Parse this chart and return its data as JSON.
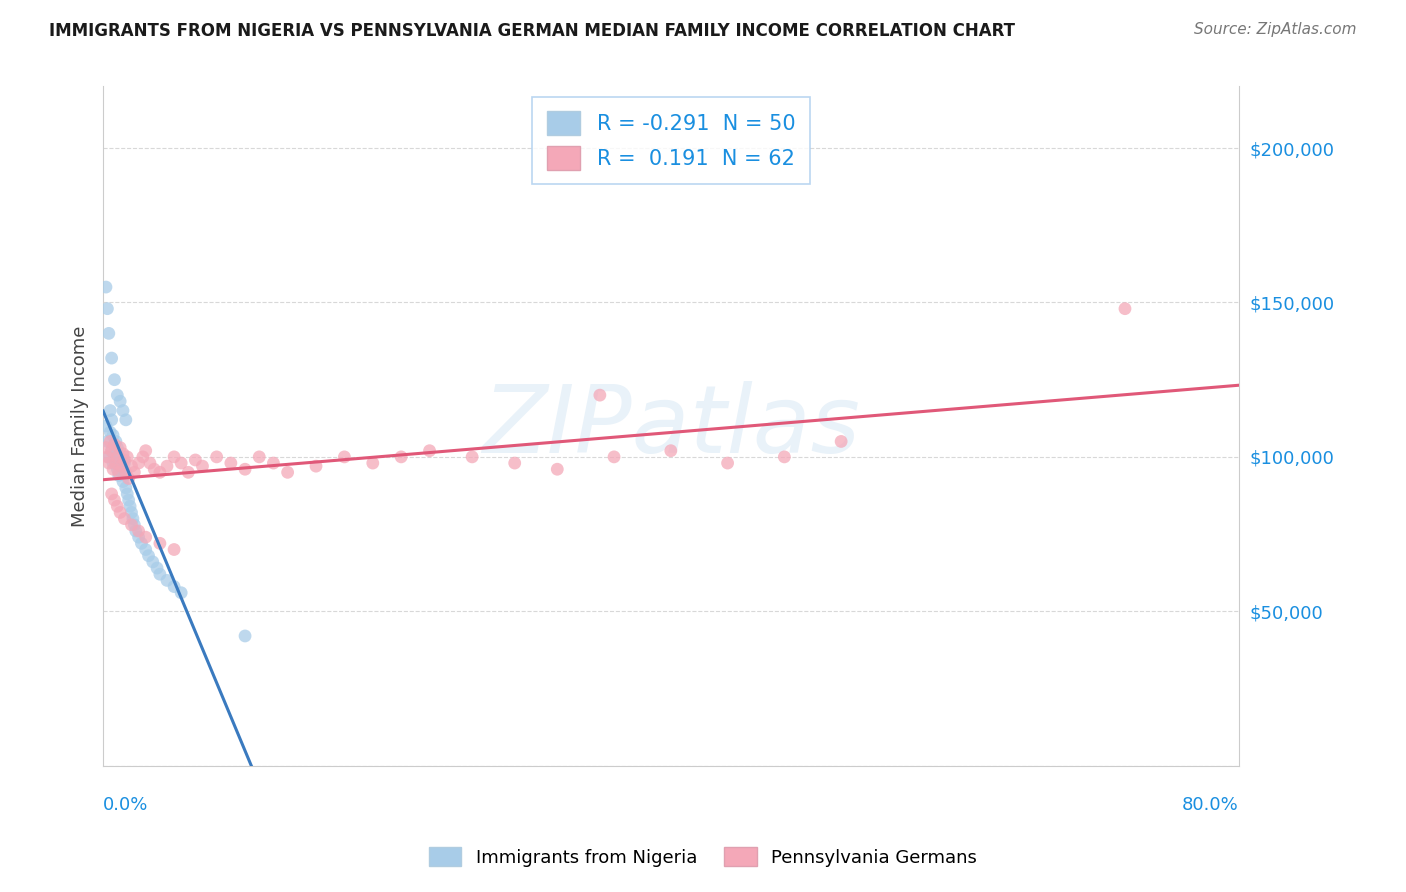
{
  "title": "IMMIGRANTS FROM NIGERIA VS PENNSYLVANIA GERMAN MEDIAN FAMILY INCOME CORRELATION CHART",
  "source": "Source: ZipAtlas.com",
  "ylabel": "Median Family Income",
  "xmin": 0.0,
  "xmax": 0.8,
  "ymin": 0,
  "ymax": 220000,
  "yticks": [
    0,
    50000,
    100000,
    150000,
    200000
  ],
  "ytick_labels": [
    "",
    "$50,000",
    "$100,000",
    "$150,000",
    "$200,000"
  ],
  "series1_label": "Immigrants from Nigeria",
  "series1_R": -0.291,
  "series1_N": 50,
  "series1_color": "#a8cce8",
  "series1_line_color": "#3a7abf",
  "series2_label": "Pennsylvania Germans",
  "series2_R": 0.191,
  "series2_N": 62,
  "series2_color": "#f4a8b8",
  "series2_line_color": "#e05878",
  "watermark": "ZIPatlas",
  "tick_color": "#1a8fe0",
  "grid_color": "#d8d8d8",
  "nigeria_x": [
    0.002,
    0.003,
    0.004,
    0.005,
    0.005,
    0.006,
    0.006,
    0.007,
    0.007,
    0.008,
    0.008,
    0.009,
    0.009,
    0.01,
    0.01,
    0.011,
    0.011,
    0.012,
    0.013,
    0.014,
    0.015,
    0.015,
    0.016,
    0.017,
    0.018,
    0.019,
    0.02,
    0.021,
    0.022,
    0.023,
    0.025,
    0.027,
    0.03,
    0.032,
    0.035,
    0.038,
    0.04,
    0.045,
    0.05,
    0.055,
    0.002,
    0.003,
    0.004,
    0.006,
    0.008,
    0.01,
    0.012,
    0.014,
    0.016,
    0.1
  ],
  "nigeria_y": [
    110000,
    105000,
    100000,
    115000,
    108000,
    102000,
    112000,
    98000,
    107000,
    104000,
    100000,
    98000,
    105000,
    103000,
    96000,
    100000,
    94000,
    97000,
    95000,
    92000,
    98000,
    94000,
    90000,
    88000,
    86000,
    84000,
    82000,
    80000,
    78000,
    76000,
    74000,
    72000,
    70000,
    68000,
    66000,
    64000,
    62000,
    60000,
    58000,
    56000,
    155000,
    148000,
    140000,
    132000,
    125000,
    120000,
    118000,
    115000,
    112000,
    42000
  ],
  "pa_x": [
    0.002,
    0.003,
    0.004,
    0.005,
    0.006,
    0.007,
    0.008,
    0.009,
    0.01,
    0.011,
    0.012,
    0.013,
    0.014,
    0.015,
    0.016,
    0.017,
    0.018,
    0.02,
    0.022,
    0.025,
    0.028,
    0.03,
    0.033,
    0.036,
    0.04,
    0.045,
    0.05,
    0.055,
    0.06,
    0.065,
    0.07,
    0.08,
    0.09,
    0.1,
    0.11,
    0.12,
    0.13,
    0.15,
    0.17,
    0.19,
    0.21,
    0.23,
    0.26,
    0.29,
    0.32,
    0.36,
    0.4,
    0.44,
    0.48,
    0.52,
    0.006,
    0.008,
    0.01,
    0.012,
    0.015,
    0.02,
    0.025,
    0.03,
    0.04,
    0.05,
    0.72,
    0.35
  ],
  "pa_y": [
    103000,
    100000,
    98000,
    105000,
    102000,
    96000,
    104000,
    98000,
    100000,
    95000,
    103000,
    97000,
    101000,
    99000,
    95000,
    100000,
    93000,
    97000,
    95000,
    98000,
    100000,
    102000,
    98000,
    96000,
    95000,
    97000,
    100000,
    98000,
    95000,
    99000,
    97000,
    100000,
    98000,
    96000,
    100000,
    98000,
    95000,
    97000,
    100000,
    98000,
    100000,
    102000,
    100000,
    98000,
    96000,
    100000,
    102000,
    98000,
    100000,
    105000,
    88000,
    86000,
    84000,
    82000,
    80000,
    78000,
    76000,
    74000,
    72000,
    70000,
    148000,
    120000
  ]
}
